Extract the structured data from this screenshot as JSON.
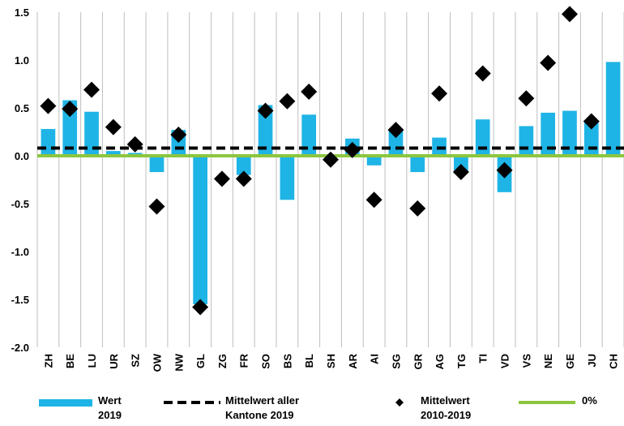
{
  "chart_data": {
    "type": "bar",
    "categories": [
      "ZH",
      "BE",
      "LU",
      "UR",
      "SZ",
      "OW",
      "NW",
      "GL",
      "ZG",
      "FR",
      "SO",
      "BS",
      "BL",
      "SH",
      "AR",
      "AI",
      "SG",
      "GR",
      "AG",
      "TG",
      "TI",
      "VD",
      "VS",
      "NE",
      "GE",
      "JU",
      "CH"
    ],
    "series": [
      {
        "name": "Wert 2019",
        "kind": "bar",
        "color": "#1fb4e6",
        "values": [
          0.28,
          0.58,
          0.46,
          0.05,
          0.03,
          -0.17,
          0.27,
          -1.55,
          0.0,
          -0.2,
          0.53,
          -0.46,
          0.43,
          0.0,
          0.18,
          -0.1,
          0.28,
          -0.17,
          0.19,
          -0.16,
          0.38,
          -0.38,
          0.31,
          0.45,
          0.47,
          0.36,
          0.98
        ]
      },
      {
        "name": "Mittelwert 2010-2019",
        "kind": "scatter",
        "marker": "diamond",
        "color": "#000000",
        "values": [
          0.52,
          0.49,
          0.69,
          0.3,
          0.12,
          -0.53,
          0.22,
          -1.58,
          -0.24,
          -0.24,
          0.47,
          0.57,
          0.67,
          -0.04,
          0.06,
          -0.46,
          0.27,
          -0.55,
          0.65,
          -0.17,
          0.86,
          -0.15,
          0.6,
          0.97,
          1.48,
          0.36,
          null
        ]
      }
    ],
    "reference_lines": [
      {
        "name": "Mittelwert aller Kantone 2019",
        "value": 0.08,
        "style": "dashed",
        "color": "#000000"
      },
      {
        "name": "0%",
        "value": 0.0,
        "style": "solid",
        "color": "#8cc63f"
      }
    ],
    "ylim": [
      -2.0,
      1.5
    ],
    "yticks": [
      -2.0,
      -1.5,
      -1.0,
      -0.5,
      0.0,
      0.5,
      1.0,
      1.5
    ],
    "ytick_labels": [
      "-2.0",
      "-1.5",
      "-1.0",
      "-0.5",
      "0.0",
      "0.5",
      "1.0",
      "1.5"
    ],
    "grid": {
      "vertical": true,
      "horizontal": false,
      "color": "#bfbfbf"
    },
    "legend": {
      "placement": "bottom",
      "items": [
        {
          "line1": "Wert",
          "line2": "2019",
          "symbol": "bar",
          "color": "#1fb4e6"
        },
        {
          "line1": "Mittelwert aller",
          "line2": "Kantone 2019",
          "symbol": "dash",
          "color": "#000000"
        },
        {
          "line1": "Mittelwert",
          "line2": "2010-2019",
          "symbol": "diamond",
          "color": "#000000"
        },
        {
          "line1": "0%",
          "line2": "",
          "symbol": "line",
          "color": "#8cc63f"
        }
      ]
    }
  }
}
